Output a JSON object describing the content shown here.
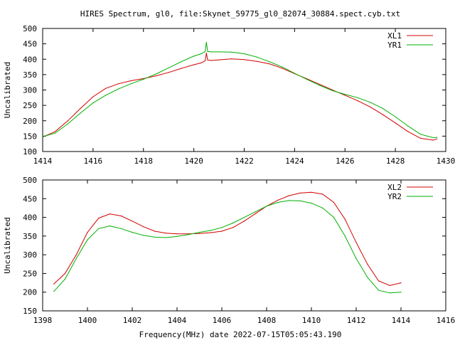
{
  "title": "HIRES Spectrum, gl0, file:Skynet_59775_gl0_82074_30884.spect.cyb.txt",
  "xlabel": "Frequency(MHz) date 2022-07-15T05:05:43.190",
  "colors": {
    "red": "#d00000",
    "green": "#00b000"
  },
  "chart_data": [
    {
      "type": "line",
      "ylabel": "Uncalibrated",
      "xlim": [
        1414,
        1430
      ],
      "ylim": [
        100,
        500
      ],
      "xticks": [
        1414,
        1416,
        1418,
        1420,
        1422,
        1424,
        1426,
        1428,
        1430
      ],
      "yticks": [
        100,
        150,
        200,
        250,
        300,
        350,
        400,
        450,
        500
      ],
      "legend": "top-right",
      "series": [
        {
          "name": "XL1",
          "color": "#d00000",
          "x": [
            1414,
            1414.5,
            1415,
            1415.5,
            1416,
            1416.5,
            1417,
            1417.5,
            1418,
            1418.5,
            1419,
            1419.5,
            1420,
            1420.3,
            1420.45,
            1420.5,
            1420.55,
            1420.7,
            1421,
            1421.5,
            1422,
            1422.5,
            1423,
            1423.5,
            1424,
            1424.5,
            1425,
            1425.5,
            1426,
            1426.5,
            1427,
            1427.5,
            1428,
            1428.5,
            1429,
            1429.5,
            1429.65
          ],
          "y": [
            147,
            165,
            200,
            240,
            278,
            305,
            320,
            330,
            337,
            346,
            357,
            370,
            382,
            388,
            395,
            420,
            397,
            396,
            398,
            401,
            399,
            393,
            385,
            371,
            353,
            336,
            318,
            300,
            283,
            265,
            245,
            220,
            193,
            165,
            143,
            137,
            141
          ]
        },
        {
          "name": "YR1",
          "color": "#00b000",
          "x": [
            1414,
            1414.5,
            1415,
            1415.5,
            1416,
            1416.5,
            1417,
            1417.5,
            1418,
            1418.5,
            1419,
            1419.5,
            1420,
            1420.3,
            1420.45,
            1420.5,
            1420.55,
            1420.7,
            1421,
            1421.5,
            1422,
            1422.5,
            1423,
            1423.5,
            1424,
            1424.5,
            1425,
            1425.5,
            1426,
            1426.5,
            1427,
            1427.5,
            1428,
            1428.5,
            1429,
            1429.5,
            1429.65
          ],
          "y": [
            148,
            160,
            190,
            225,
            258,
            283,
            303,
            320,
            335,
            352,
            372,
            392,
            410,
            418,
            425,
            455,
            425,
            424,
            424,
            423,
            418,
            407,
            392,
            375,
            354,
            334,
            315,
            298,
            286,
            275,
            260,
            240,
            213,
            183,
            156,
            145,
            146
          ]
        }
      ]
    },
    {
      "type": "line",
      "ylabel": "Uncalibrated",
      "xlim": [
        1398,
        1416
      ],
      "ylim": [
        150,
        500
      ],
      "xticks": [
        1398,
        1400,
        1402,
        1404,
        1406,
        1408,
        1410,
        1412,
        1414,
        1416
      ],
      "yticks": [
        150,
        200,
        250,
        300,
        350,
        400,
        450,
        500
      ],
      "legend": "top-right",
      "series": [
        {
          "name": "XL2",
          "color": "#d00000",
          "x": [
            1398.5,
            1399,
            1399.5,
            1400,
            1400.5,
            1401,
            1401.5,
            1402,
            1402.5,
            1403,
            1403.5,
            1404,
            1404.5,
            1405,
            1405.5,
            1406,
            1406.5,
            1407,
            1407.5,
            1408,
            1408.5,
            1409,
            1409.5,
            1410,
            1410.5,
            1411,
            1411.5,
            1412,
            1412.5,
            1413,
            1413.5,
            1414
          ],
          "y": [
            222,
            250,
            300,
            360,
            398,
            409,
            404,
            390,
            375,
            363,
            358,
            356,
            356,
            357,
            359,
            363,
            373,
            390,
            410,
            430,
            446,
            458,
            465,
            467,
            462,
            440,
            395,
            333,
            275,
            230,
            218,
            225
          ]
        },
        {
          "name": "YR2",
          "color": "#00b000",
          "x": [
            1398.5,
            1399,
            1399.5,
            1400,
            1400.5,
            1401,
            1401.5,
            1402,
            1402.5,
            1403,
            1403.5,
            1404,
            1404.5,
            1405,
            1405.5,
            1406,
            1406.5,
            1407,
            1407.5,
            1408,
            1408.5,
            1409,
            1409.5,
            1410,
            1410.5,
            1411,
            1411.5,
            1412,
            1412.5,
            1413,
            1413.5,
            1414
          ],
          "y": [
            202,
            235,
            290,
            340,
            370,
            377,
            370,
            360,
            352,
            347,
            346,
            349,
            354,
            360,
            365,
            373,
            385,
            400,
            415,
            430,
            440,
            445,
            444,
            438,
            425,
            400,
            350,
            290,
            240,
            205,
            198,
            200
          ]
        }
      ]
    }
  ]
}
